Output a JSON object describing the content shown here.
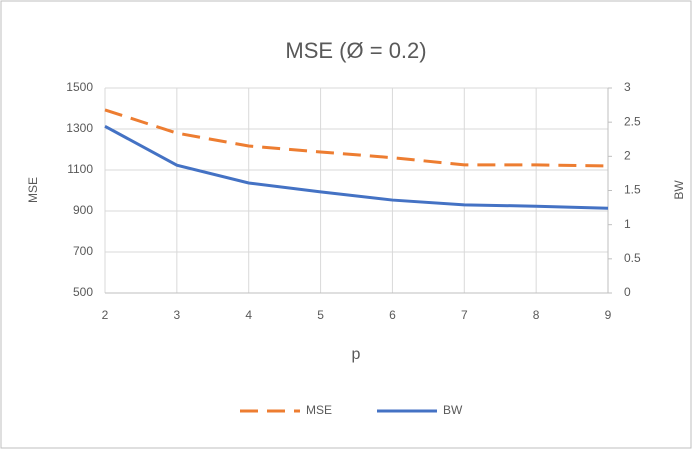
{
  "chart_data": {
    "type": "line",
    "title": "MSE (Ø = 0.2)",
    "x_label": "p",
    "y_label": "MSE",
    "y2_label": "BW",
    "x": [
      2,
      3,
      4,
      5,
      6,
      7,
      8,
      9
    ],
    "xlim": [
      2,
      9
    ],
    "xticks": [
      2,
      3,
      4,
      5,
      6,
      7,
      8,
      9
    ],
    "ylim": [
      500,
      1500
    ],
    "yticks": [
      500,
      700,
      900,
      1100,
      1300,
      1500
    ],
    "y2lim": [
      0,
      3
    ],
    "y2ticks": [
      0,
      0.5,
      1,
      1.5,
      2,
      2.5,
      3
    ],
    "grid": true,
    "legend": "bottom",
    "series": [
      {
        "name": "MSE",
        "color": "#ed7d31",
        "dash": true,
        "values": [
          1393,
          1280,
          1217,
          1188,
          1160,
          1125,
          1125,
          1120
        ]
      },
      {
        "name": "BW",
        "color": "#4472c4",
        "axis": "y2",
        "values": [
          2.44,
          1.87,
          1.61,
          1.48,
          1.36,
          1.29,
          1.27,
          1.24
        ]
      }
    ]
  }
}
